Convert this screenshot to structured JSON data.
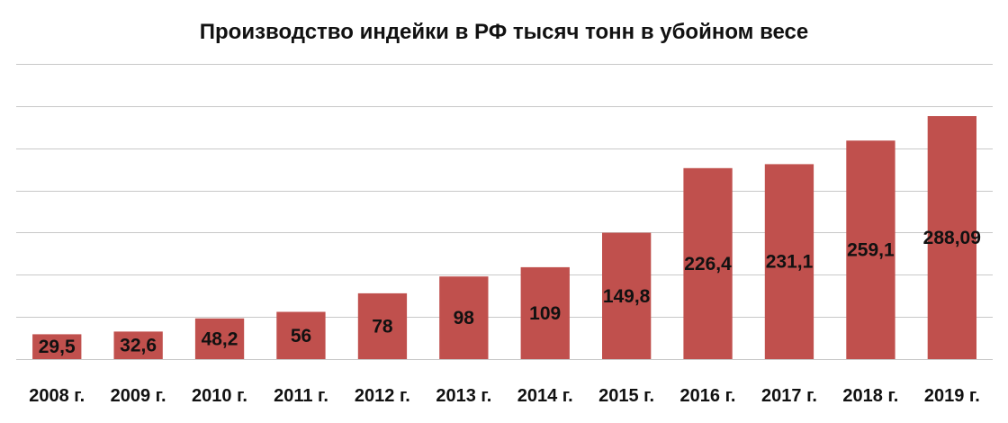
{
  "chart_data": {
    "type": "bar",
    "title": "Производство индейки в РФ тысяч тонн в убойном весе",
    "xlabel": "",
    "ylabel": "",
    "categories": [
      "2008 г.",
      "2009 г.",
      "2010 г.",
      "2011 г.",
      "2012 г.",
      "2013 г.",
      "2014 г.",
      "2015 г.",
      "2016 г.",
      "2017 г.",
      "2018 г.",
      "2019 г."
    ],
    "values": [
      29.5,
      32.6,
      48.2,
      56,
      78,
      98,
      109,
      149.8,
      226.4,
      231.1,
      259.1,
      288.09
    ],
    "value_labels": [
      "29,5",
      "32,6",
      "48,2",
      "56",
      "78",
      "98",
      "109",
      "149,8",
      "226,4",
      "231,1",
      "259,1",
      "288,09"
    ],
    "ylim": [
      0,
      350
    ],
    "ytick_step": 50,
    "grid": true,
    "legend": "none",
    "colors": {
      "bar": "#c0504d",
      "grid": "#c8c8c8"
    }
  }
}
